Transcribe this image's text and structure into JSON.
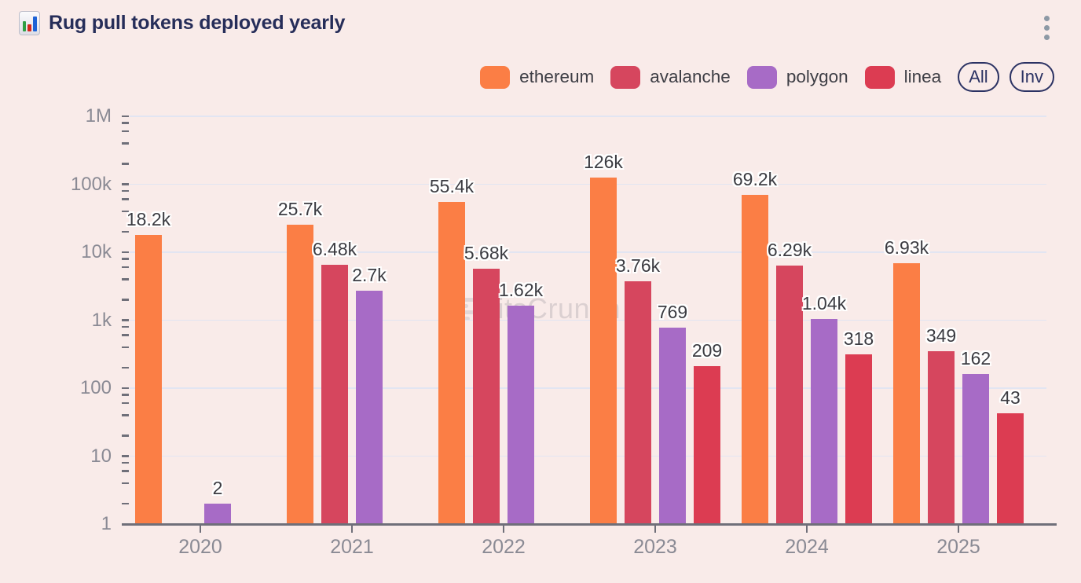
{
  "header": {
    "title": "Rug pull tokens deployed yearly"
  },
  "legend": {
    "items": [
      {
        "label": "ethereum",
        "color": "#fb7e45"
      },
      {
        "label": "avalanche",
        "color": "#d6465e"
      },
      {
        "label": "polygon",
        "color": "#a76bc6"
      },
      {
        "label": "linea",
        "color": "#dc3c52"
      }
    ],
    "all_label": "All",
    "inv_label": "Inv"
  },
  "watermark": "bitsCrunch",
  "chart_data": {
    "type": "bar",
    "title": "Rug pull tokens deployed yearly",
    "categories": [
      "2020",
      "2021",
      "2022",
      "2023",
      "2024",
      "2025"
    ],
    "series": [
      {
        "name": "ethereum",
        "color": "#fb7e45",
        "values": [
          18200,
          25700,
          55400,
          126000,
          69200,
          6930
        ],
        "labels": [
          "18.2k",
          "25.7k",
          "55.4k",
          "126k",
          "69.2k",
          "6.93k"
        ]
      },
      {
        "name": "avalanche",
        "color": "#d6465e",
        "values": [
          null,
          6480,
          5680,
          3760,
          6290,
          349
        ],
        "labels": [
          null,
          "6.48k",
          "5.68k",
          "3.76k",
          "6.29k",
          "349"
        ]
      },
      {
        "name": "polygon",
        "color": "#a76bc6",
        "values": [
          2,
          2700,
          1620,
          769,
          1040,
          162
        ],
        "labels": [
          "2",
          "2.7k",
          "1.62k",
          "769",
          "1.04k",
          "162"
        ]
      },
      {
        "name": "linea",
        "color": "#dc3c52",
        "values": [
          null,
          null,
          null,
          209,
          318,
          43
        ],
        "labels": [
          null,
          null,
          null,
          "209",
          "318",
          "43"
        ]
      }
    ],
    "xlabel": "",
    "ylabel": "",
    "y_axis": {
      "scale": "log",
      "tick_labels": [
        "1M",
        "100k",
        "10k",
        "1k",
        "100",
        "10",
        "1"
      ],
      "tick_values": [
        1000000,
        100000,
        10000,
        1000,
        100,
        10,
        1
      ],
      "ylim": [
        1,
        1000000
      ]
    },
    "grid": "horizontal-major",
    "legend_position": "top-right"
  }
}
